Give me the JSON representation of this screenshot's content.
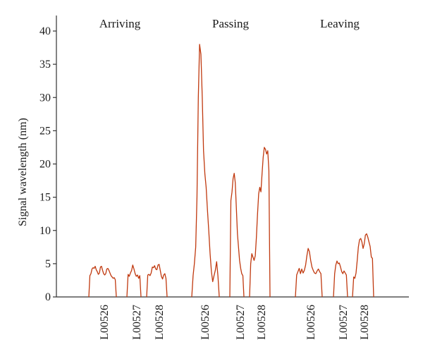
{
  "chart_data": {
    "type": "line",
    "ylabel": "Signal wavelength (nm)",
    "xlabel": "",
    "ylim": [
      0,
      42
    ],
    "yticks": [
      0,
      5,
      10,
      15,
      20,
      25,
      30,
      35,
      40
    ],
    "grid": false,
    "line_color": "#c0390f",
    "groups": [
      {
        "label": "Arriving",
        "series": [
          {
            "label": "L00526",
            "values": [
              0,
              3.2,
              3.5,
              4.2,
              4.4,
              4.3,
              4.6,
              4.1,
              3.8,
              3.4,
              3.6,
              4.5,
              4.6,
              4.0,
              3.5,
              3.3,
              3.5,
              4.2,
              4.3,
              4.0,
              3.6,
              3.2,
              3.0,
              2.8,
              2.9,
              2.6,
              0
            ]
          },
          {
            "label": "L00527",
            "values": [
              0,
              3.4,
              3.1,
              3.6,
              4.0,
              4.8,
              4.2,
              3.5,
              3.1,
              3.3,
              2.8,
              3.2,
              0
            ]
          },
          {
            "label": "L00528",
            "values": [
              0,
              3.3,
              3.4,
              3.2,
              3.6,
              4.5,
              4.4,
              4.7,
              4.2,
              4.1,
              4.8,
              4.9,
              4.0,
              3.1,
              2.7,
              3.3,
              3.5,
              2.8,
              0
            ]
          }
        ]
      },
      {
        "label": "Passing",
        "series": [
          {
            "label": "L00526",
            "values": [
              0,
              3.2,
              5.0,
              7.5,
              15.0,
              30.0,
              38.0,
              36.5,
              30.0,
              22.0,
              18.5,
              16.5,
              13.0,
              10.0,
              6.5,
              3.8,
              2.3,
              3.2,
              4.0,
              5.3,
              3.2,
              0
            ]
          },
          {
            "label": "L00527",
            "values": [
              0,
              14.5,
              15.8,
              17.8,
              18.6,
              17.2,
              13.5,
              9.5,
              7.5,
              5.5,
              4.3,
              3.5,
              3.2,
              0
            ]
          },
          {
            "label": "L00528",
            "values": [
              0,
              5.0,
              6.5,
              6.0,
              5.5,
              6.2,
              9.0,
              12.5,
              15.5,
              16.5,
              15.8,
              18.5,
              21.0,
              22.5,
              22.2,
              21.5,
              22.0,
              19.0,
              0
            ]
          }
        ]
      },
      {
        "label": "Leaving",
        "series": [
          {
            "label": "L00526",
            "values": [
              0,
              3.3,
              3.8,
              4.3,
              3.5,
              4.2,
              3.6,
              4.0,
              4.8,
              6.2,
              7.3,
              6.8,
              5.5,
              4.5,
              4.0,
              3.6,
              3.5,
              3.9,
              4.2,
              3.8,
              3.5,
              0
            ]
          },
          {
            "label": "L00527",
            "values": [
              0,
              3.5,
              4.8,
              5.4,
              5.0,
              5.1,
              4.5,
              3.8,
              3.5,
              3.9,
              3.6,
              3.3,
              0
            ]
          },
          {
            "label": "L00528",
            "values": [
              0,
              3.0,
              2.8,
              3.6,
              5.5,
              7.5,
              8.6,
              8.8,
              8.3,
              7.3,
              8.0,
              9.3,
              9.5,
              9.0,
              8.3,
              7.6,
              6.0,
              5.8,
              0
            ]
          }
        ]
      }
    ]
  }
}
